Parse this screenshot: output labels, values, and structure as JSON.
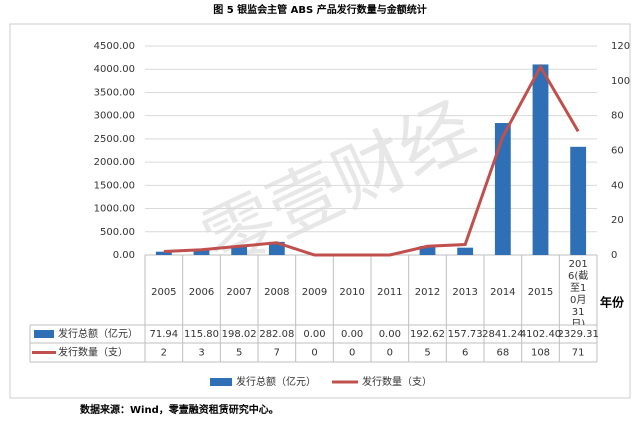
{
  "chart_data": {
    "type": "bar_line",
    "title": "图 5  银监会主管 ABS 产品发行数量与金额统计",
    "x_label": "年份",
    "source": "数据来源：Wind，零壹融资租赁研究中心。",
    "watermark": "零壹财经",
    "categories": [
      "2005",
      "2006",
      "2007",
      "2008",
      "2009",
      "2010",
      "2011",
      "2012",
      "2013",
      "2014",
      "2015",
      "2016(截至10月31日)"
    ],
    "series": [
      {
        "name": "发行总额（亿元）",
        "color": "#2e6fb5",
        "values": [
          71.94,
          115.8,
          198.02,
          282.08,
          0,
          0,
          0,
          192.62,
          157.73,
          2841.24,
          4102.4,
          2329.31
        ],
        "value_labels": [
          "71.94",
          "115.80",
          "198.02",
          "282.08",
          "0.00",
          "0.00",
          "0.00",
          "192.62",
          "157.73",
          "2841.24",
          "4102.40",
          "2329.31"
        ]
      },
      {
        "name": "发行数量（支）",
        "color": "#c0504d",
        "axis": "y2",
        "values": [
          2,
          3,
          5,
          7,
          0,
          0,
          0,
          5,
          6,
          68,
          108,
          71
        ]
      }
    ],
    "ylim": [
      0,
      4500
    ],
    "yticks": [
      {
        "value": 0,
        "label": "0.00"
      },
      {
        "value": 500,
        "label": "500.00"
      },
      {
        "value": 1000,
        "label": "1000.00"
      },
      {
        "value": 1500,
        "label": "1500.00"
      },
      {
        "value": 2000,
        "label": "2000.00"
      },
      {
        "value": 2500,
        "label": "2500.00"
      },
      {
        "value": 3000,
        "label": "3000.00"
      },
      {
        "value": 3500,
        "label": "3500.00"
      },
      {
        "value": 4000,
        "label": "4000.00"
      },
      {
        "value": 4500,
        "label": "4500.00"
      }
    ],
    "y2lim": [
      0,
      120
    ],
    "y2ticks": [
      0,
      20,
      40,
      60,
      80,
      100,
      120
    ],
    "grid": true
  }
}
